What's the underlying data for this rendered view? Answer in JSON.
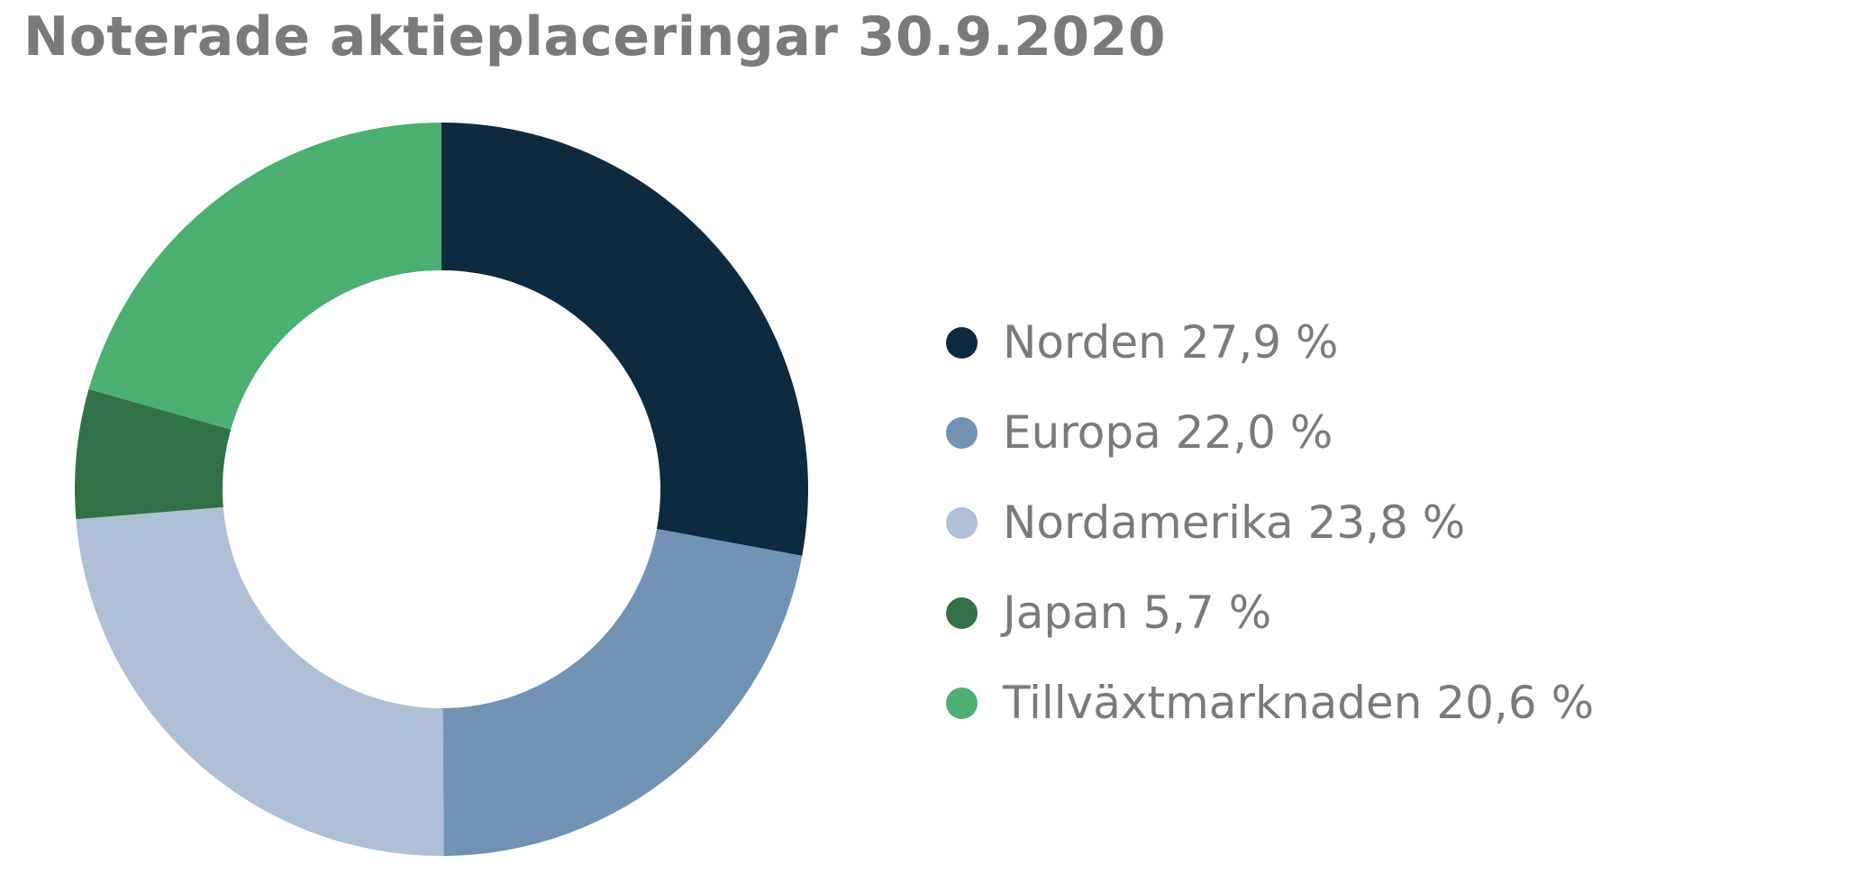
{
  "chart_data": {
    "type": "pie",
    "variant": "donut",
    "title": "Noterade aktieplaceringar 30.9.2020",
    "legend_position": "right",
    "series": [
      {
        "name": "Norden",
        "value": 27.9,
        "value_label": "27,9 %",
        "color": "#0d2a3f"
      },
      {
        "name": "Europa",
        "value": 22.0,
        "value_label": "22,0 %",
        "color": "#7191b5"
      },
      {
        "name": "Nordamerika",
        "value": 23.8,
        "value_label": "23,8 %",
        "color": "#aec0d5"
      },
      {
        "name": "Japan",
        "value": 5.7,
        "value_label": "5,7 %",
        "color": "#307246"
      },
      {
        "name": "Tillväxtmarknaden",
        "value": 20.6,
        "value_label": "20,6 %",
        "color": "#4baf72"
      }
    ]
  }
}
